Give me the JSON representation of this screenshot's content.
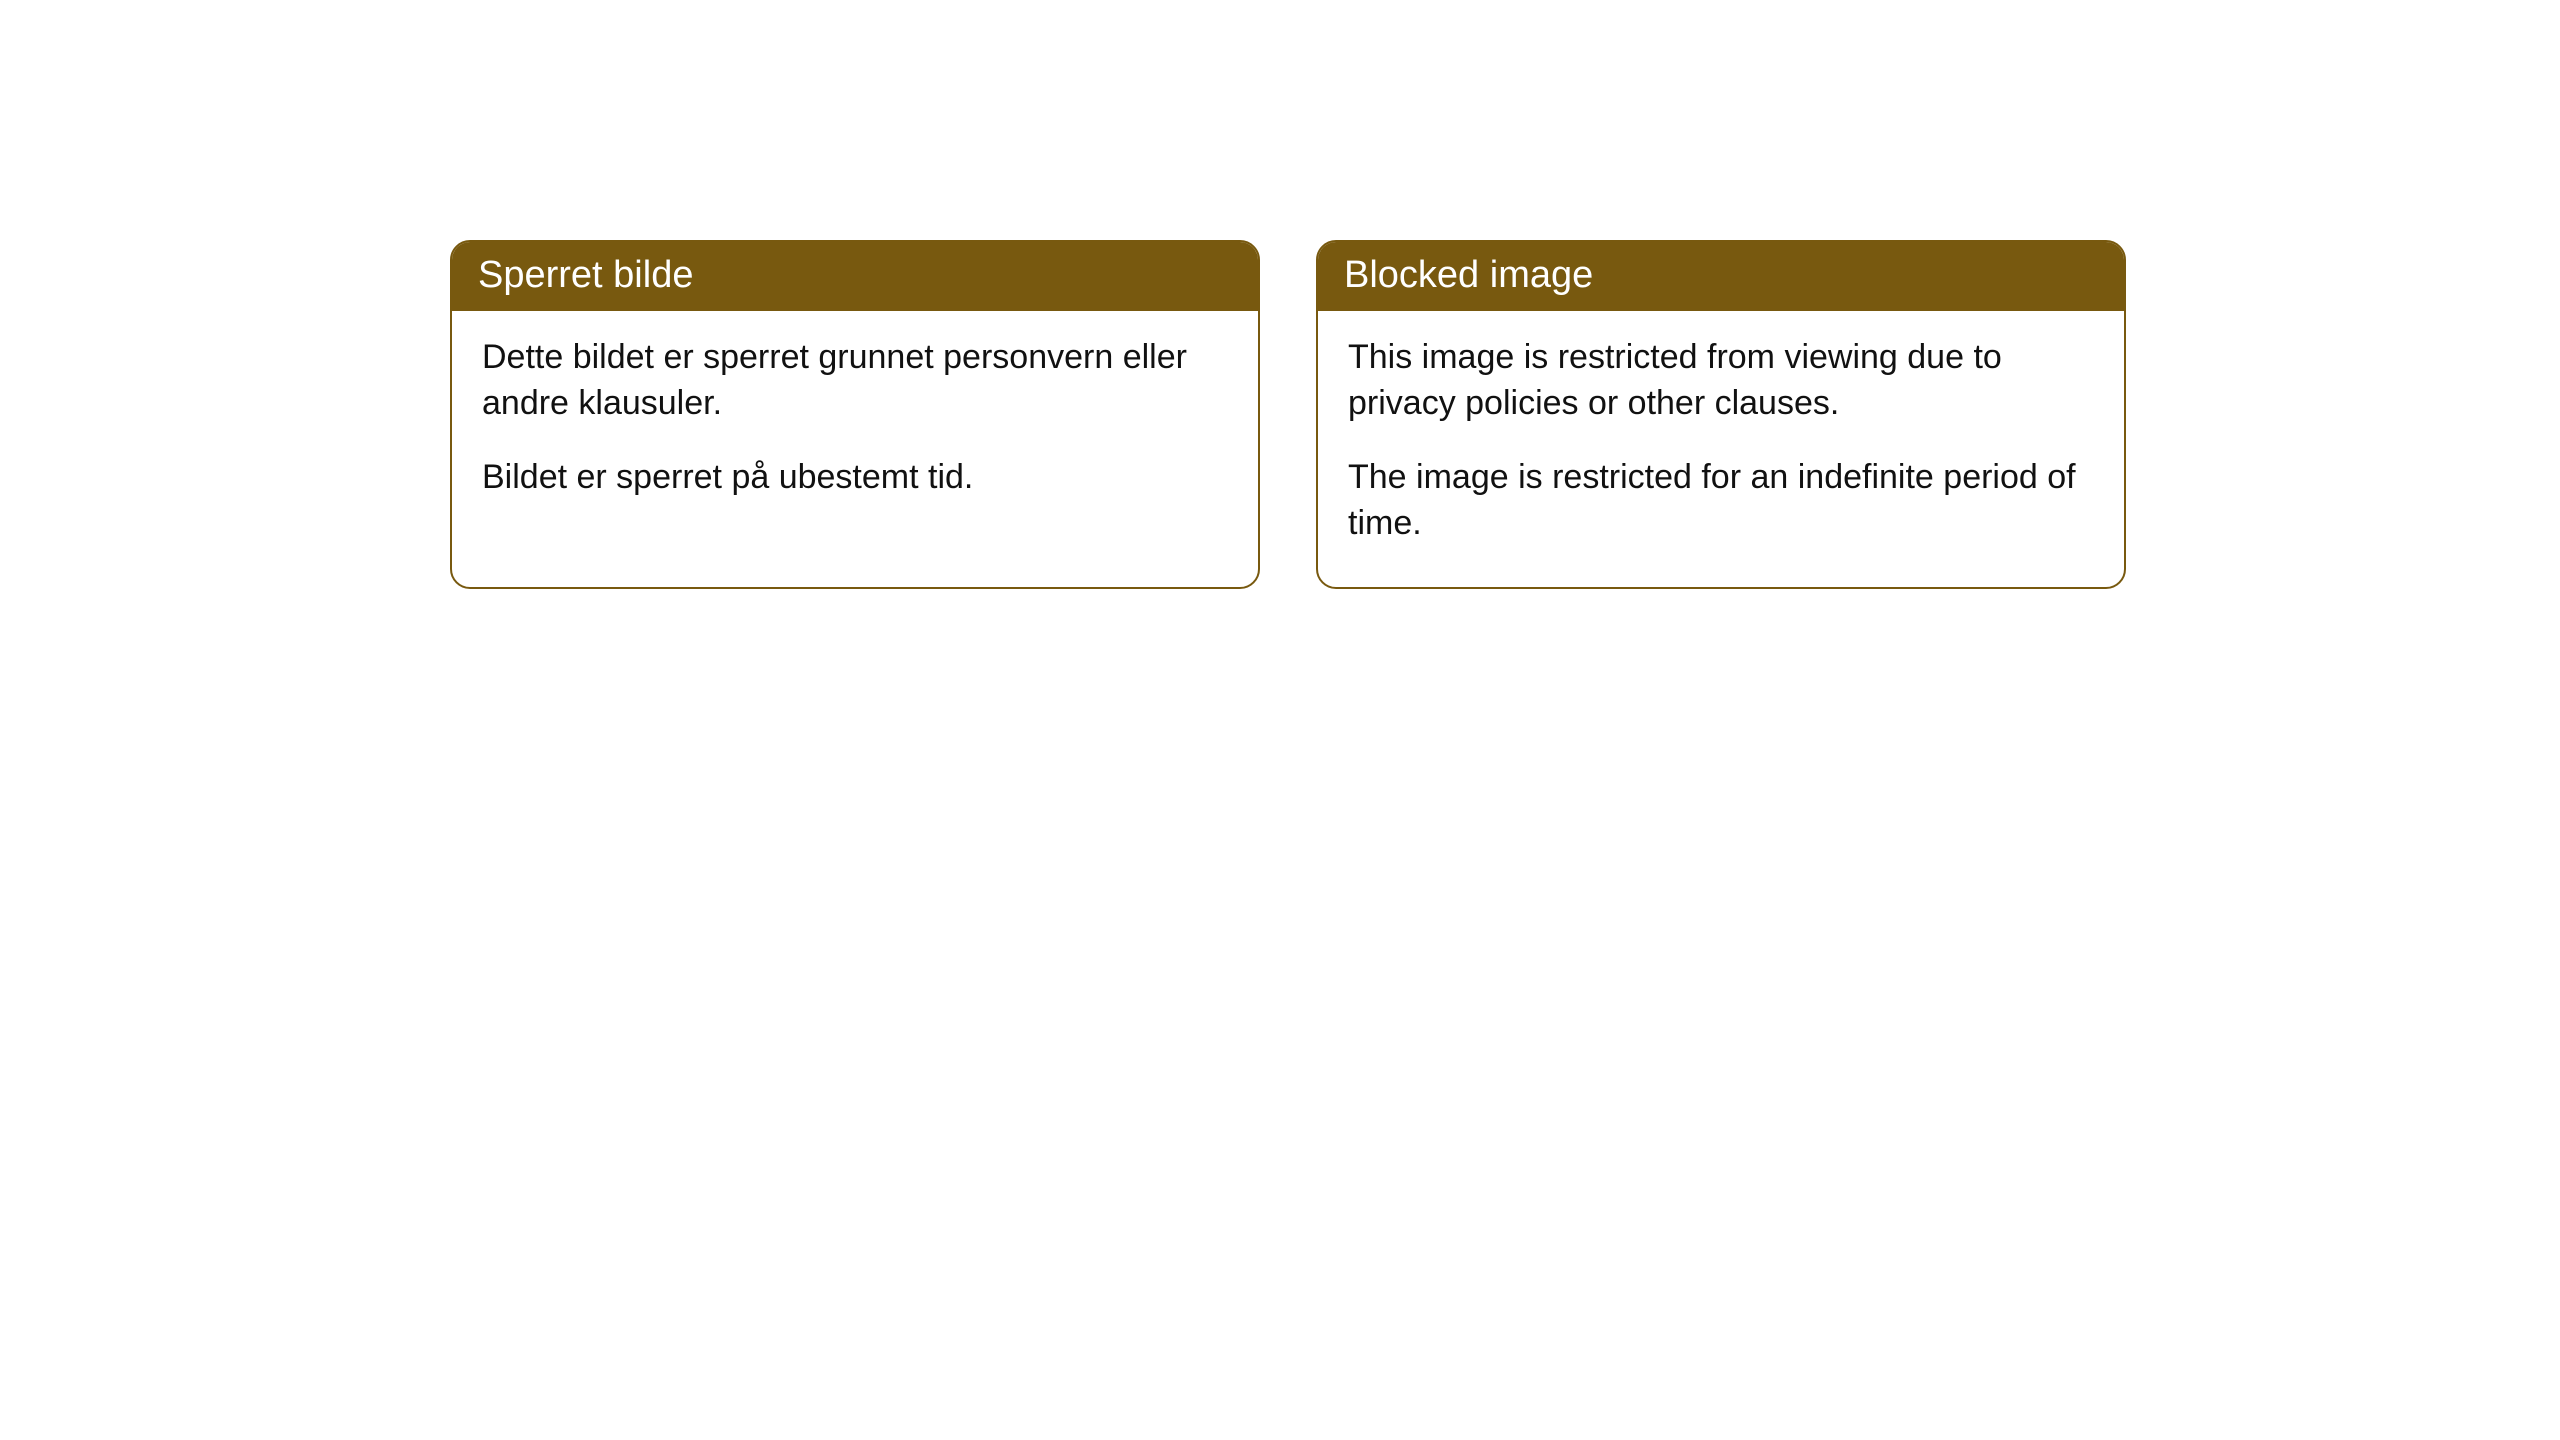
{
  "cards": [
    {
      "title": "Sperret bilde",
      "paragraph1": "Dette bildet er sperret grunnet personvern eller andre klausuler.",
      "paragraph2": "Bildet er sperret på ubestemt tid."
    },
    {
      "title": "Blocked image",
      "paragraph1": "This image is restricted from viewing due to privacy policies or other clauses.",
      "paragraph2": "The image is restricted for an indefinite period of time."
    }
  ],
  "styling": {
    "header_background": "#78590f",
    "header_text_color": "#ffffff",
    "border_color": "#78590f",
    "body_background": "#ffffff",
    "body_text_color": "#111111",
    "border_radius": 20,
    "header_fontsize": 38,
    "body_fontsize": 34
  }
}
